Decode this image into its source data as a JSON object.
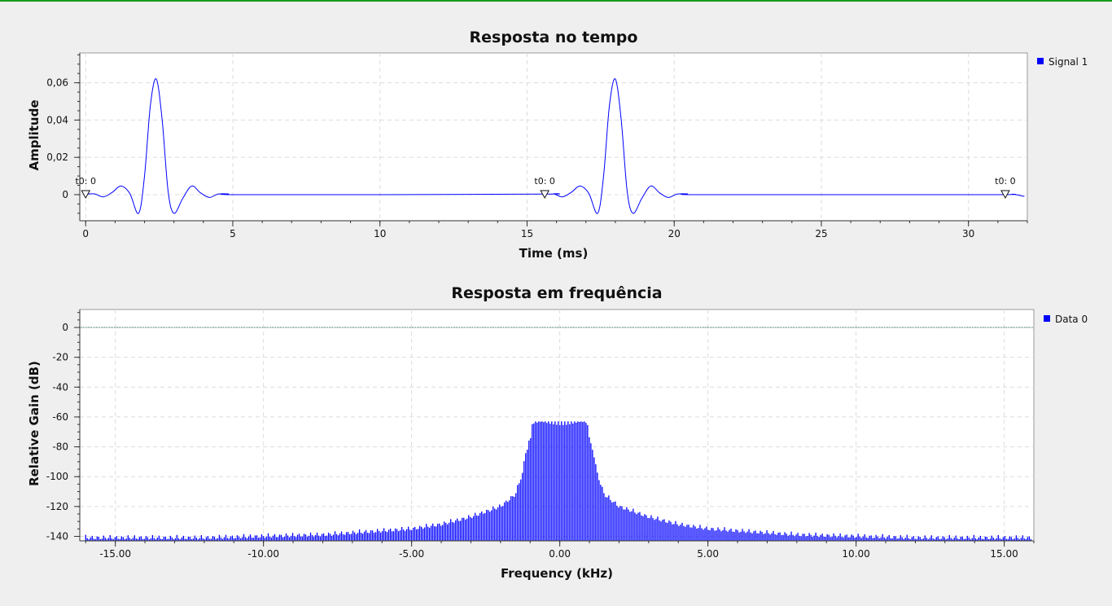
{
  "chart_data": [
    {
      "type": "line",
      "title": "Resposta no tempo",
      "xlabel": "Time (ms)",
      "ylabel": "Amplitude",
      "xlim": [
        -0.2,
        32
      ],
      "ylim": [
        -0.014,
        0.076
      ],
      "xticks": [
        0,
        5,
        10,
        15,
        20,
        25,
        30
      ],
      "xtick_labels": [
        "0",
        "5",
        "10",
        "15",
        "20",
        "25",
        "30"
      ],
      "yticks": [
        0,
        0.02,
        0.04,
        0.06
      ],
      "ytick_labels": [
        "0",
        "0,02",
        "0,04",
        "0,06"
      ],
      "grid": true,
      "legend_position": "top-right",
      "series": [
        {
          "name": "Signal 1",
          "color": "#0000ff",
          "x": [
            0,
            0.3,
            0.6,
            0.9,
            1.2,
            1.5,
            1.8,
            2.0,
            2.2,
            2.4,
            2.6,
            2.8,
            3.0,
            3.3,
            3.6,
            3.9,
            4.2,
            4.5,
            4.85,
            5.0,
            10,
            15.6,
            15.9,
            16.2,
            16.5,
            16.8,
            17.1,
            17.4,
            17.6,
            17.8,
            18.0,
            18.2,
            18.4,
            18.6,
            18.9,
            19.2,
            19.5,
            19.8,
            20.1,
            20.45,
            20.6,
            25,
            31.0,
            31.5,
            31.9
          ],
          "y": [
            0.0003,
            0.0004,
            -0.0012,
            0.0012,
            0.0046,
            0.0006,
            -0.01,
            0.01,
            0.048,
            0.062,
            0.04,
            0.002,
            -0.01,
            -0.002,
            0.0046,
            0.001,
            -0.0015,
            0.0003,
            0.0004,
            0,
            0,
            0.0003,
            0.0004,
            -0.0012,
            0.0012,
            0.0046,
            0.0006,
            -0.01,
            0.01,
            0.048,
            0.062,
            0.04,
            0.002,
            -0.01,
            -0.002,
            0.0046,
            0.001,
            -0.0015,
            0.0003,
            0.0004,
            0,
            0,
            0,
            0.0002,
            -0.001
          ]
        }
      ],
      "markers": [
        {
          "x": 0,
          "label": "t0: 0"
        },
        {
          "x": 15.6,
          "label": "t0: 0"
        },
        {
          "x": 31.25,
          "label": "t0: 0"
        }
      ]
    },
    {
      "type": "bar",
      "title": "Resposta em frequência",
      "xlabel": "Frequency (kHz)",
      "ylabel": "Relative Gain (dB)",
      "xlim": [
        -16.2,
        16.0
      ],
      "ylim": [
        -143,
        12
      ],
      "xticks": [
        -15,
        -10,
        -5,
        0,
        5,
        10,
        15
      ],
      "xtick_labels": [
        "-15.00",
        "-10.00",
        "-5.00",
        "0.00",
        "5.00",
        "10.00",
        "15.00"
      ],
      "yticks": [
        0,
        -20,
        -40,
        -60,
        -80,
        -100,
        -120,
        -140
      ],
      "ytick_labels": [
        "0",
        "-20",
        "-40",
        "-60",
        "-80",
        "-100",
        "-120",
        "-140"
      ],
      "grid": true,
      "legend_position": "top-right",
      "reference_line": 0,
      "series": [
        {
          "name": "Data 0",
          "color": "#0000ff",
          "envelope_x": [
            -16,
            -12,
            -8,
            -5,
            -4,
            -3,
            -2,
            -1.5,
            -1.25,
            -1.1,
            -0.9,
            0.9,
            1.1,
            1.25,
            1.5,
            2,
            3,
            4,
            5,
            8,
            12,
            16
          ],
          "envelope_y": [
            -139,
            -139,
            -137,
            -133,
            -130,
            -125,
            -118,
            -110,
            -95,
            -75,
            -63,
            -63,
            -75,
            -95,
            -110,
            -118,
            -125,
            -130,
            -133,
            -137,
            -139,
            -139
          ]
        }
      ]
    }
  ]
}
